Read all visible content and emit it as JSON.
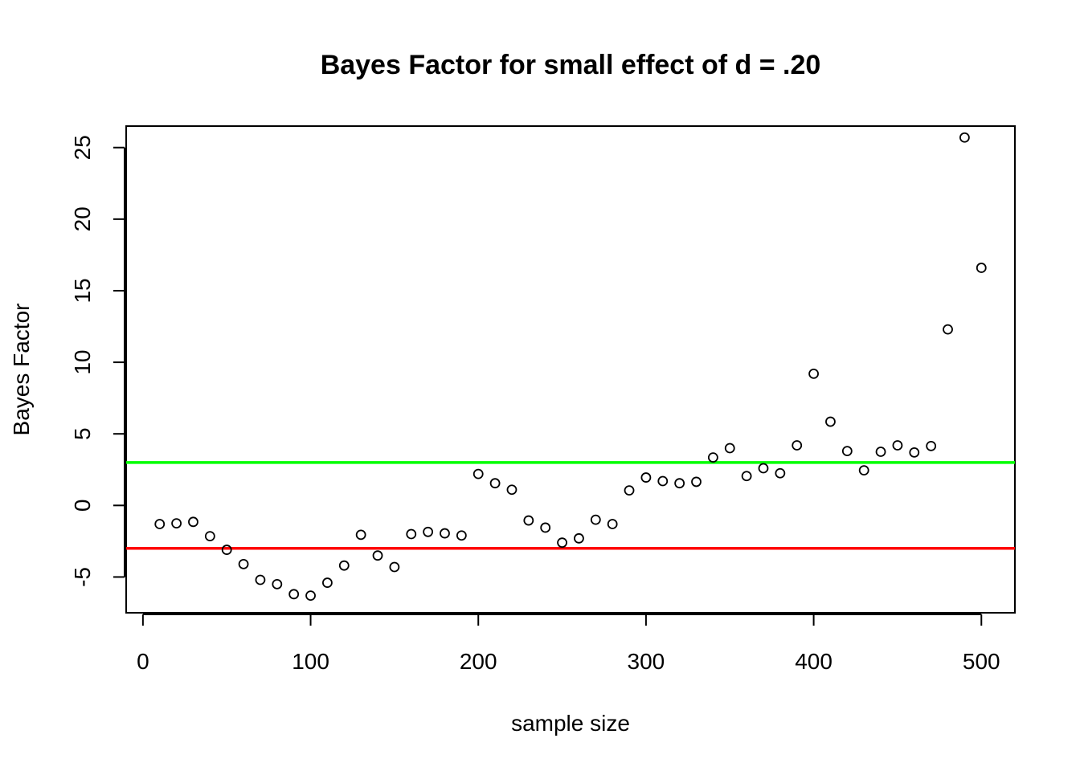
{
  "chart_data": {
    "type": "scatter",
    "title": "Bayes Factor for small effect of d = .20",
    "xlabel": "sample size",
    "ylabel": "Bayes Factor",
    "xlim": [
      -10,
      520
    ],
    "ylim": [
      -7.5,
      26.5
    ],
    "xticks": [
      0,
      100,
      200,
      300,
      400,
      500
    ],
    "yticks": [
      -5,
      0,
      5,
      10,
      15,
      20,
      25
    ],
    "grid": false,
    "series": [
      {
        "x": [
          10,
          20,
          30,
          40,
          50,
          60,
          70,
          80,
          90,
          100,
          110,
          120,
          130,
          140,
          150,
          160,
          170,
          180,
          190,
          200,
          210,
          220,
          230,
          240,
          250,
          260,
          270,
          280,
          290,
          300,
          310,
          320,
          330,
          340,
          350,
          360,
          370,
          380,
          390,
          400,
          410,
          420,
          430,
          440,
          450,
          460,
          470,
          480,
          490,
          500
        ],
        "y": [
          -1.3,
          -1.25,
          -1.15,
          -2.15,
          -3.1,
          -4.1,
          -5.2,
          -5.5,
          -6.2,
          -6.3,
          -5.4,
          -4.2,
          -2.05,
          -3.5,
          -4.3,
          -2.0,
          -1.85,
          -1.95,
          -2.1,
          2.2,
          1.55,
          1.1,
          -1.05,
          -1.55,
          -2.6,
          -2.3,
          -1.0,
          -1.3,
          1.05,
          1.95,
          1.7,
          1.55,
          1.65,
          3.35,
          4.0,
          2.05,
          2.6,
          2.25,
          4.2,
          9.2,
          5.85,
          3.8,
          2.45,
          3.75,
          4.2,
          3.7,
          4.15,
          12.3,
          25.7,
          16.6
        ]
      }
    ],
    "reference_lines": [
      {
        "y": 3,
        "color": "#00ff00"
      },
      {
        "y": -3,
        "color": "#ff0000"
      }
    ]
  }
}
